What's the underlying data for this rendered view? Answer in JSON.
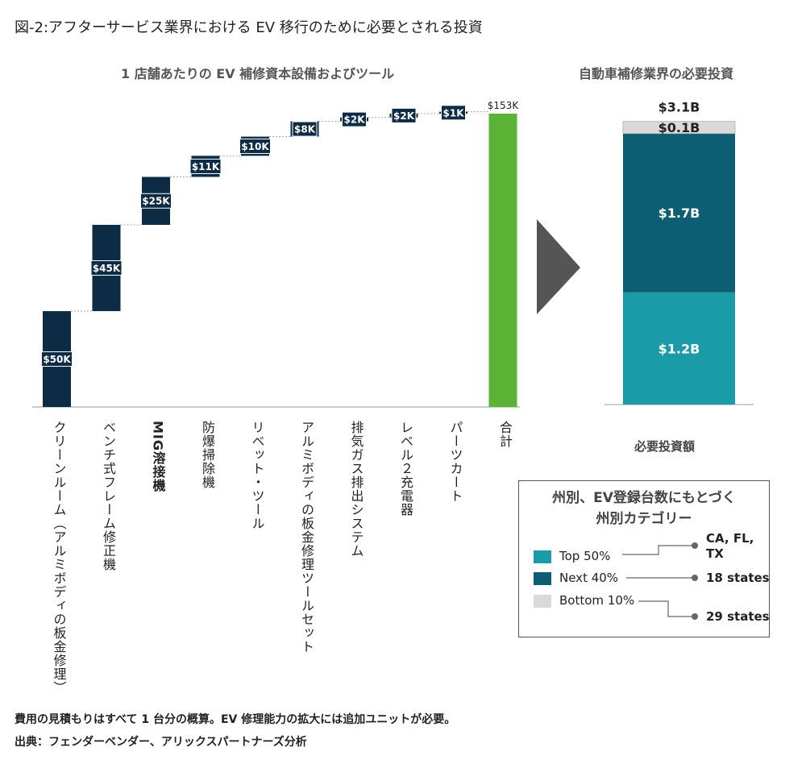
{
  "figure_title": "図-2:アフターサービス業界における EV 移行のために必要とされる投資",
  "colors": {
    "dark_navy": "#0d2b45",
    "green": "#5ab334",
    "teal_light": "#1b9aa8",
    "teal_dark": "#0c5e73",
    "gray": "#d9d9d9",
    "arrow": "#555555"
  },
  "chart_data": [
    {
      "type": "bar",
      "subtype": "waterfall",
      "title": "1 店舗あたりの EV 補修資本設備およびツール",
      "categories": [
        "クリーンルーム（アルミボディの板金修理）",
        "ベンチ式フレーム修正機",
        "MIG溶接機",
        "防爆掃除機",
        "リベット・ツール",
        "アルミボディの板金修理ツールセット",
        "排気ガス排出システム",
        "レベル２充電器",
        "パーツカート",
        "合計"
      ],
      "values": [
        50,
        45,
        25,
        11,
        10,
        8,
        2,
        2,
        1,
        153
      ],
      "value_labels": [
        "$50K",
        "$45K",
        "$25K",
        "$11K",
        "$10K",
        "$8K",
        "$2K",
        "$2K",
        "$1K",
        "$153K"
      ],
      "unit": "$K",
      "ylim": [
        0,
        160
      ]
    },
    {
      "type": "bar",
      "subtype": "stacked",
      "title": "自動車補修業界の必要投資",
      "xlabel": "必要投資額",
      "total_label": "$3.1B",
      "series": [
        {
          "name": "Top 50%",
          "value": 1.2,
          "label": "$1.2B"
        },
        {
          "name": "Next 40%",
          "value": 1.7,
          "label": "$1.7B"
        },
        {
          "name": "Bottom 10%",
          "value": 0.1,
          "label": "$0.1B"
        }
      ],
      "unit": "$B"
    }
  ],
  "legend": {
    "title_line1": "州別、EV登録台数にもとづく",
    "title_line2": "州別カテゴリー",
    "items": [
      {
        "label": "Top 50%",
        "desc_line1": "CA, FL,",
        "desc_line2": "TX"
      },
      {
        "label": "Next 40%",
        "desc_line1": "18 states",
        "desc_line2": ""
      },
      {
        "label": "Bottom 10%",
        "desc_line1": "29 states",
        "desc_line2": ""
      }
    ]
  },
  "footnotes": [
    "費用の見積もりはすべて 1 台分の概算。EV 修理能力の拡大には追加ユニットが必要。",
    "出典：フェンダーベンダー、アリックスパートナーズ分析"
  ]
}
